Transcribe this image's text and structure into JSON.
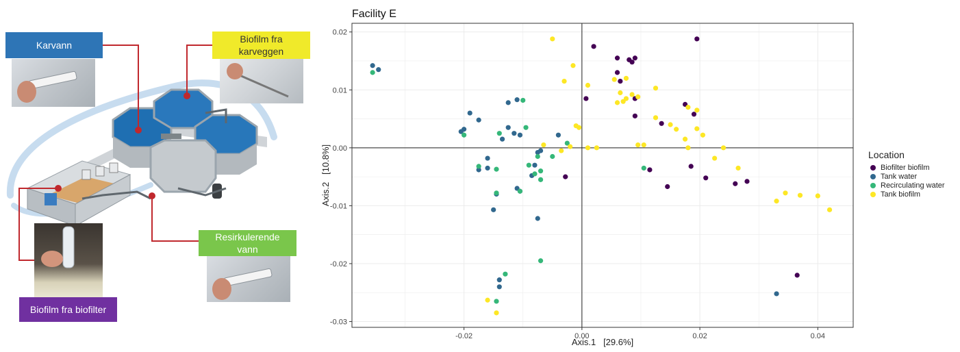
{
  "illustration": {
    "labels": {
      "karvann": "Karvann",
      "biofilm_karveggen": "Biofilm fra\nkarveggen",
      "resirkulerende": "Resirkulerende\nvann",
      "biofilm_biofilter": "Biofilm fra biofilter"
    },
    "colors": {
      "karvann": "#2e75b6",
      "biofilm_karveggen": "#f0ea2a",
      "resirkulerende": "#7ac64b",
      "biofilm_biofilter": "#7030a0",
      "leader": "#c0282d"
    }
  },
  "chart_data": {
    "type": "scatter",
    "title": "Facility E",
    "xlabel": "Axis.1   [29.6%]",
    "ylabel": "Axis.2   [10.8%]",
    "xlim": [
      -0.039,
      0.046
    ],
    "ylim": [
      -0.031,
      0.0215
    ],
    "x_ticks": [
      -0.02,
      0.0,
      0.02,
      0.04
    ],
    "x_tick_labels": [
      "-0.02",
      "0.00",
      "0.02",
      "0.04"
    ],
    "y_ticks": [
      -0.03,
      -0.02,
      -0.01,
      0.0,
      0.01,
      0.02
    ],
    "y_tick_labels": [
      "-0.03",
      "-0.02",
      "-0.01",
      "0.00",
      "0.01",
      "0.02"
    ],
    "grid": true,
    "zero_lines": true,
    "legend": {
      "title": "Location",
      "position": "right"
    },
    "series": [
      {
        "name": "Biofilter biofilm",
        "color": "#440154",
        "points": [
          [
            0.002,
            0.0175
          ],
          [
            0.0195,
            0.0188
          ],
          [
            0.006,
            0.0155
          ],
          [
            0.008,
            0.0152
          ],
          [
            0.009,
            0.0155
          ],
          [
            0.0085,
            0.0148
          ],
          [
            0.006,
            0.013
          ],
          [
            0.0065,
            0.0115
          ],
          [
            0.0007,
            0.0085
          ],
          [
            0.009,
            0.0085
          ],
          [
            0.0175,
            0.0075
          ],
          [
            0.019,
            0.0058
          ],
          [
            0.009,
            0.0055
          ],
          [
            0.0135,
            0.0042
          ],
          [
            0.0115,
            -0.0038
          ],
          [
            0.0185,
            -0.0032
          ],
          [
            0.021,
            -0.0052
          ],
          [
            0.0145,
            -0.0067
          ],
          [
            0.026,
            -0.0062
          ],
          [
            0.028,
            -0.0058
          ],
          [
            -0.0028,
            -0.005
          ],
          [
            0.0365,
            -0.022
          ]
        ]
      },
      {
        "name": "Tank water",
        "color": "#31688e",
        "points": [
          [
            -0.0355,
            0.0142
          ],
          [
            -0.0345,
            0.0135
          ],
          [
            -0.019,
            0.006
          ],
          [
            -0.0175,
            0.0048
          ],
          [
            -0.0205,
            0.0028
          ],
          [
            -0.02,
            0.0032
          ],
          [
            -0.0125,
            0.0078
          ],
          [
            -0.011,
            0.0083
          ],
          [
            -0.0125,
            0.0035
          ],
          [
            -0.0115,
            0.0025
          ],
          [
            -0.0105,
            0.0022
          ],
          [
            -0.0135,
            0.0015
          ],
          [
            -0.004,
            0.0022
          ],
          [
            -0.016,
            -0.0018
          ],
          [
            -0.016,
            -0.0035
          ],
          [
            -0.0175,
            -0.0038
          ],
          [
            -0.008,
            -0.003
          ],
          [
            -0.0085,
            -0.0048
          ],
          [
            -0.0075,
            -0.0008
          ],
          [
            -0.007,
            -0.0005
          ],
          [
            -0.011,
            -0.007
          ],
          [
            -0.0105,
            -0.0075
          ],
          [
            -0.0145,
            -0.008
          ],
          [
            -0.015,
            -0.0107
          ],
          [
            -0.0075,
            -0.0122
          ],
          [
            -0.014,
            -0.0228
          ],
          [
            -0.014,
            -0.024
          ],
          [
            0.033,
            -0.0252
          ]
        ]
      },
      {
        "name": "Recirculating water",
        "color": "#35b779",
        "points": [
          [
            -0.0355,
            0.013
          ],
          [
            -0.01,
            0.0082
          ],
          [
            -0.0095,
            0.0035
          ],
          [
            -0.02,
            0.0022
          ],
          [
            -0.014,
            0.0025
          ],
          [
            -0.0025,
            0.0008
          ],
          [
            -0.005,
            -0.0015
          ],
          [
            -0.0075,
            -0.0015
          ],
          [
            -0.007,
            -0.004
          ],
          [
            -0.007,
            -0.0055
          ],
          [
            -0.008,
            -0.0045
          ],
          [
            -0.009,
            -0.003
          ],
          [
            -0.0175,
            -0.0032
          ],
          [
            -0.0145,
            -0.0037
          ],
          [
            -0.0145,
            -0.0078
          ],
          [
            -0.0105,
            -0.0075
          ],
          [
            0.0105,
            -0.0035
          ],
          [
            -0.007,
            -0.0195
          ],
          [
            -0.013,
            -0.0218
          ],
          [
            -0.0145,
            -0.0265
          ]
        ]
      },
      {
        "name": "Tank biofilm",
        "color": "#fde725",
        "points": [
          [
            -0.005,
            0.0188
          ],
          [
            -0.0015,
            0.0142
          ],
          [
            -0.003,
            0.0115
          ],
          [
            0.001,
            0.0108
          ],
          [
            0.0055,
            0.0118
          ],
          [
            0.0075,
            0.012
          ],
          [
            0.0125,
            0.0103
          ],
          [
            0.0065,
            0.0095
          ],
          [
            0.0085,
            0.0092
          ],
          [
            0.0095,
            0.0088
          ],
          [
            0.0075,
            0.0085
          ],
          [
            0.006,
            0.0078
          ],
          [
            0.007,
            0.008
          ],
          [
            0.018,
            0.007
          ],
          [
            0.0195,
            0.0065
          ],
          [
            0.0125,
            0.0052
          ],
          [
            0.015,
            0.004
          ],
          [
            0.016,
            0.0032
          ],
          [
            0.0175,
            0.0015
          ],
          [
            0.0195,
            0.0033
          ],
          [
            0.0205,
            0.0022
          ],
          [
            -0.0005,
            0.0035
          ],
          [
            -0.001,
            0.0038
          ],
          [
            0.0095,
            0.0005
          ],
          [
            0.0105,
            0.0005
          ],
          [
            0.001,
            0.0
          ],
          [
            0.0025,
            0.0
          ],
          [
            -0.002,
            0.0002
          ],
          [
            -0.0035,
            -0.0005
          ],
          [
            -0.0065,
            0.0005
          ],
          [
            0.018,
            0.0
          ],
          [
            0.024,
            0.0
          ],
          [
            0.0225,
            -0.0018
          ],
          [
            0.0265,
            -0.0035
          ],
          [
            0.033,
            -0.0092
          ],
          [
            0.0345,
            -0.0078
          ],
          [
            0.037,
            -0.0082
          ],
          [
            0.04,
            -0.0083
          ],
          [
            0.042,
            -0.0107
          ],
          [
            -0.016,
            -0.0263
          ],
          [
            -0.0145,
            -0.0285
          ]
        ]
      }
    ]
  }
}
